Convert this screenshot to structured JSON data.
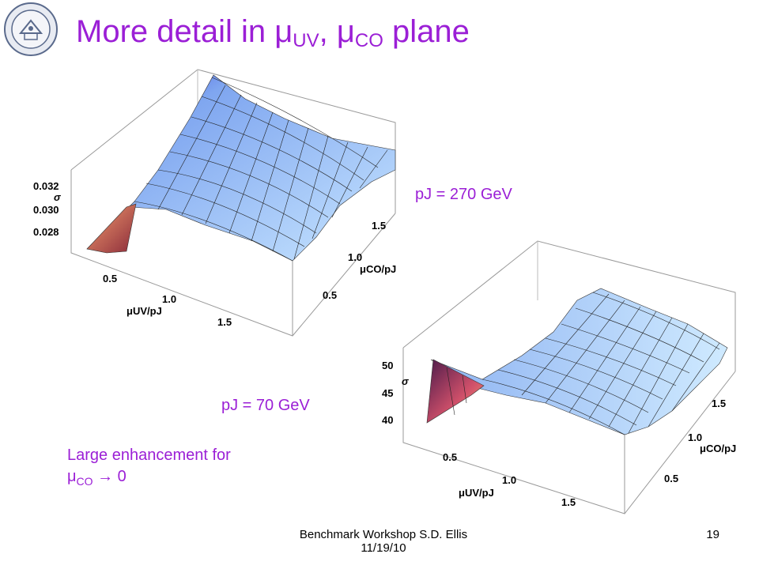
{
  "slide": {
    "title_prefix": "More detail in ",
    "title_mu1": "μ",
    "title_sub1": "UV",
    "title_comma": ", ",
    "title_mu2": "μ",
    "title_sub2": "CO",
    "title_suffix": " plane",
    "label_270": "pJ = 270 GeV",
    "label_70": "pJ = 70 GeV",
    "note_line1": "Large enhancement for",
    "note_mu": "μ",
    "note_sub": "CO",
    "note_arrow": " → 0",
    "footer_line1": "Benchmark Workshop   S.D. Ellis",
    "footer_line2": "11/19/10",
    "page_number": "19"
  },
  "plot1": {
    "sigma_label": "σ",
    "z_ticks": [
      "0.032",
      "0.030",
      "0.028"
    ],
    "x_ticks": [
      "0.5",
      "1.0",
      "1.5"
    ],
    "x_label": "μUV/pJ",
    "y_ticks": [
      "0.5",
      "1.0",
      "1.5"
    ],
    "y_label": "μCO/pJ"
  },
  "plot2": {
    "sigma_label": "σ",
    "z_ticks": [
      "50",
      "45",
      "40"
    ],
    "x_ticks": [
      "0.5",
      "1.0",
      "1.5"
    ],
    "x_label": "μUV/pJ",
    "y_ticks": [
      "0.5",
      "1.0",
      "1.5"
    ],
    "y_label": "μCO/pJ"
  }
}
